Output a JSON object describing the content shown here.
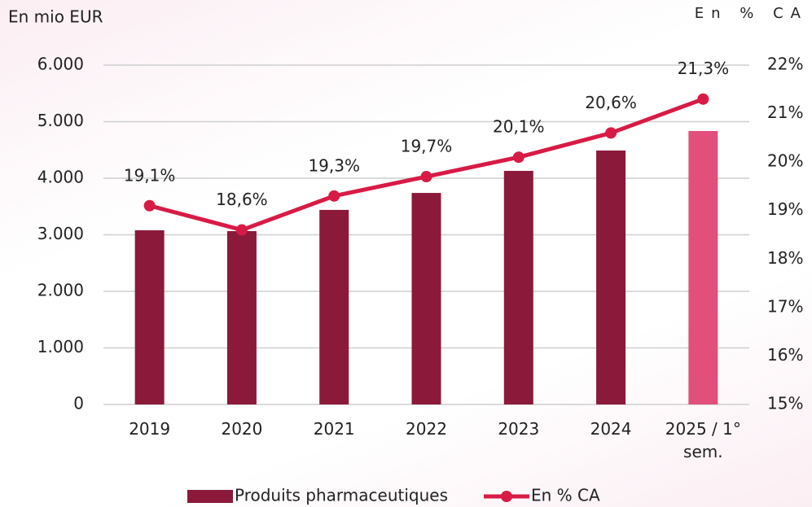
{
  "chart_data": {
    "type": "bar_line",
    "y_label": "En mio EUR",
    "y2_label": "En % CA",
    "categories": [
      "2019",
      "2020",
      "2021",
      "2022",
      "2023",
      "2024",
      "2025 / 1° sem."
    ],
    "series": [
      {
        "name": "Produits pharmaceutiques",
        "type": "bar",
        "color": "#8b1a3a",
        "colors": [
          "#8b1a3a",
          "#8b1a3a",
          "#8b1a3a",
          "#8b1a3a",
          "#8b1a3a",
          "#8b1a3a",
          "#e0507a"
        ],
        "values": [
          3080,
          3065,
          3440,
          3740,
          4130,
          4490,
          4835
        ]
      },
      {
        "name": "En % CA",
        "type": "line",
        "axis": "y2",
        "color": "#d81b45",
        "values": [
          19.1,
          18.6,
          19.3,
          19.7,
          20.1,
          20.6,
          21.3
        ],
        "value_labels": [
          "19,1%",
          "18,6%",
          "19,3%",
          "19,7%",
          "20,1%",
          "20,6%",
          "21,3%"
        ]
      }
    ],
    "ylim": [
      0,
      6000
    ],
    "yticks": [
      0,
      {
        "value": 1000,
        "label": "1.000"
      },
      {
        "value": 2000,
        "label": "2.000"
      },
      {
        "value": 3000,
        "label": "3.000"
      },
      {
        "value": 4000,
        "label": "4.000"
      },
      {
        "value": 5000,
        "label": "5.000"
      },
      {
        "value": 6000,
        "label": "6.000"
      }
    ],
    "y2lim": [
      15,
      22
    ],
    "y2ticks": [
      {
        "value": 15,
        "label": "15%"
      },
      {
        "value": 16,
        "label": "16%"
      },
      {
        "value": 17,
        "label": "17%"
      },
      {
        "value": 18,
        "label": "18%"
      },
      {
        "value": 19,
        "label": "19%"
      },
      {
        "value": 20,
        "label": "20%"
      },
      {
        "value": 21,
        "label": "21%"
      },
      {
        "value": 22,
        "label": "22%"
      }
    ],
    "grid": true,
    "legend": "bottom"
  }
}
